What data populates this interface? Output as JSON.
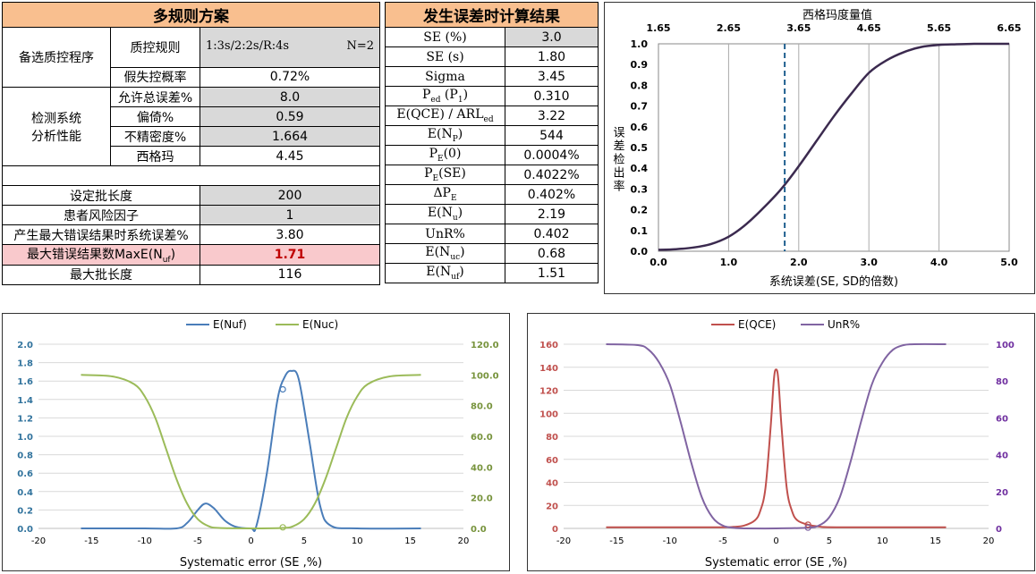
{
  "left_table": {
    "title": "多规则方案",
    "candidate_label": "备选质控程序",
    "qc_rule_label": "质控规则",
    "qc_rule_value": "1:3s/2:2s/R:4s",
    "n_value": "N=2",
    "false_reject_label": "假失控概率",
    "false_reject_value": "0.72%",
    "system_label_1": "检测系统",
    "system_label_2": "分析性能",
    "tea_label": "允许总误差%",
    "tea_value": "8.0",
    "bias_label": "偏倚%",
    "bias_value": "0.59",
    "cv_label": "不精密度%",
    "cv_value": "1.664",
    "sigma_label": "西格玛",
    "sigma_value": "4.45",
    "batch_label": "设定批长度",
    "batch_value": "200",
    "risk_label": "患者风险因子",
    "risk_value": "1",
    "max_se_label": "产生最大错误结果时系统误差%",
    "max_se_value": "3.80",
    "max_nuf_label": "最大错误结果数MaxE(N",
    "max_nuf_sub": "uf",
    "max_nuf_close": ")",
    "max_nuf_value": "1.71",
    "max_batch_label": "最大批长度",
    "max_batch_value": "116"
  },
  "right_table": {
    "title": "发生误差时计算结果",
    "rows": [
      {
        "label": "SE (%)",
        "value": "3.0",
        "gray": true
      },
      {
        "label": "SE (s)",
        "value": "1.80"
      },
      {
        "label": "Sigma",
        "value": "3.45"
      },
      {
        "label": "P",
        "sub": "ed",
        "label2": " (P",
        "sub2": "1",
        "label3": ")",
        "value": "0.310"
      },
      {
        "label": "E(QCE) / ARL",
        "sub": "ed",
        "value": "3.22"
      },
      {
        "label": "E(N",
        "sub": "P",
        "label2": ")",
        "value": "544"
      },
      {
        "label": "P",
        "sub": "E",
        "label2": "(0)",
        "value": "0.0004%"
      },
      {
        "label": "P",
        "sub": "E",
        "label2": "(SE)",
        "value": "0.4022%"
      },
      {
        "label": "ΔP",
        "sub": "E",
        "value": "0.402%"
      },
      {
        "label": "E(N",
        "sub": "u",
        "label2": ")",
        "value": "2.19"
      },
      {
        "label": "UnR%",
        "value": "0.402"
      },
      {
        "label": "E(N",
        "sub": "uc",
        "label2": ")",
        "value": "0.68"
      },
      {
        "label": "E(N",
        "sub": "uf",
        "label2": ")",
        "value": "1.51"
      }
    ]
  },
  "chart_data": [
    {
      "type": "line",
      "title": "",
      "top_axis_label": "西格玛度量值",
      "top_ticks": [
        "1.65",
        "2.65",
        "3.65",
        "4.65",
        "5.65",
        "6.65"
      ],
      "xlabel": "系统误差(SE, SD的倍数)",
      "ylabel": "误差检出率",
      "xlim": [
        0,
        5
      ],
      "ylim": [
        0,
        1
      ],
      "x_ticks": [
        "0.0",
        "1.0",
        "2.0",
        "3.0",
        "4.0",
        "5.0"
      ],
      "y_ticks": [
        "0.0",
        "0.1",
        "0.2",
        "0.3",
        "0.4",
        "0.5",
        "0.6",
        "0.7",
        "0.8",
        "0.9",
        "1.0"
      ],
      "series": [
        {
          "color": "#3b2a4f",
          "x": [
            0,
            0.25,
            0.5,
            0.75,
            1.0,
            1.25,
            1.5,
            1.75,
            2.0,
            2.25,
            2.5,
            2.75,
            3.0,
            3.25,
            3.5,
            3.75,
            4.0,
            4.25,
            4.5,
            4.75,
            5.0
          ],
          "y": [
            0.007,
            0.01,
            0.018,
            0.035,
            0.07,
            0.13,
            0.21,
            0.3,
            0.41,
            0.53,
            0.65,
            0.76,
            0.86,
            0.92,
            0.96,
            0.985,
            0.995,
            0.998,
            1.0,
            1.0,
            1.0
          ]
        }
      ],
      "marker_line_x": 1.8
    },
    {
      "type": "line",
      "legend": [
        "E(Nuf)",
        "E(Nuc)"
      ],
      "legend_position": "top",
      "xlabel": "Systematic error   (SE ,%)",
      "xlim": [
        -20,
        20
      ],
      "ylim_left": [
        0,
        2
      ],
      "ylim_right": [
        0,
        120
      ],
      "x_ticks": [
        "-20",
        "-15",
        "-10",
        "-5",
        "0",
        "5",
        "10",
        "15",
        "20"
      ],
      "y_ticks_left": [
        "0.0",
        "0.2",
        "0.4",
        "0.6",
        "0.8",
        "1.0",
        "1.2",
        "1.4",
        "1.6",
        "1.8",
        "2.0"
      ],
      "y_ticks_right": [
        "0.0",
        "20.0",
        "40.0",
        "60.0",
        "80.0",
        "100.0",
        "120.0"
      ],
      "series": [
        {
          "name": "E(Nuf)",
          "axis": "left",
          "color": "#4a7db9",
          "x": [
            -16,
            -10,
            -7,
            -6,
            -5,
            -4.3,
            -3.5,
            -2.5,
            -1.5,
            0,
            0.5,
            1.5,
            2.5,
            3.2,
            3.8,
            4.5,
            5.5,
            6.5,
            7.5,
            10,
            16
          ],
          "y": [
            0,
            0,
            0,
            0.06,
            0.2,
            0.27,
            0.22,
            0.09,
            0.02,
            0,
            0.02,
            0.6,
            1.4,
            1.65,
            1.71,
            1.62,
            0.95,
            0.25,
            0.03,
            0,
            0
          ]
        },
        {
          "name": "E(Nuc)",
          "axis": "right",
          "color": "#9bbb59",
          "x": [
            -16,
            -13,
            -11,
            -10,
            -9,
            -8,
            -7,
            -6,
            -5,
            -4,
            -3,
            0,
            3,
            4,
            5,
            6,
            7,
            8,
            9,
            10,
            11,
            13,
            16
          ],
          "y": [
            100,
            99,
            94,
            86,
            72,
            52,
            32,
            16,
            6,
            1.5,
            0.3,
            0,
            0.3,
            1.5,
            6,
            16,
            32,
            52,
            72,
            86,
            94,
            99,
            100
          ]
        }
      ],
      "markers": [
        {
          "series": "E(Nuf)",
          "x": 3.0,
          "y": 1.51
        },
        {
          "series": "E(Nuc)",
          "x": 3.0,
          "y": 0.68
        }
      ]
    },
    {
      "type": "line",
      "legend": [
        "E(QCE)",
        "UnR%"
      ],
      "legend_position": "top",
      "xlabel": "Systematic error   (SE ,%)",
      "xlim": [
        -20,
        20
      ],
      "ylim_left": [
        0,
        160
      ],
      "ylim_right": [
        0,
        100
      ],
      "x_ticks": [
        "-20",
        "-15",
        "-10",
        "-5",
        "0",
        "5",
        "10",
        "15",
        "20"
      ],
      "y_ticks_left": [
        "0",
        "20",
        "40",
        "60",
        "80",
        "100",
        "120",
        "140",
        "160"
      ],
      "y_ticks_right": [
        "0",
        "20",
        "40",
        "60",
        "80",
        "100"
      ],
      "series": [
        {
          "name": "E(QCE)",
          "axis": "left",
          "color": "#c0504d",
          "x": [
            -16,
            -6,
            -4,
            -3,
            -2,
            -1.5,
            -1,
            -0.5,
            -0.2,
            0,
            0.2,
            0.5,
            1,
            1.5,
            2,
            3,
            4,
            6,
            16
          ],
          "y": [
            1,
            1,
            1.3,
            2.5,
            7,
            15,
            35,
            90,
            130,
            138,
            130,
            90,
            35,
            15,
            7,
            3.2,
            1.6,
            1,
            1
          ]
        },
        {
          "name": "UnR%",
          "axis": "right",
          "color": "#8064a2",
          "x": [
            -16,
            -13,
            -12,
            -11,
            -10,
            -9,
            -8,
            -7,
            -6,
            -5,
            -4,
            -3,
            0,
            3,
            4,
            5,
            6,
            7,
            8,
            9,
            10,
            11,
            12,
            13,
            16
          ],
          "y": [
            100,
            99.5,
            97,
            90,
            78,
            58,
            36,
            17,
            6,
            1.5,
            0.3,
            0,
            0,
            0.4,
            1.5,
            6,
            17,
            36,
            58,
            78,
            90,
            97,
            99.5,
            100,
            100
          ]
        }
      ],
      "markers": [
        {
          "series": "E(QCE)",
          "x": 3.0,
          "y": 3.22
        },
        {
          "series": "UnR%",
          "x": 3.0,
          "y": 0.402
        }
      ]
    }
  ]
}
